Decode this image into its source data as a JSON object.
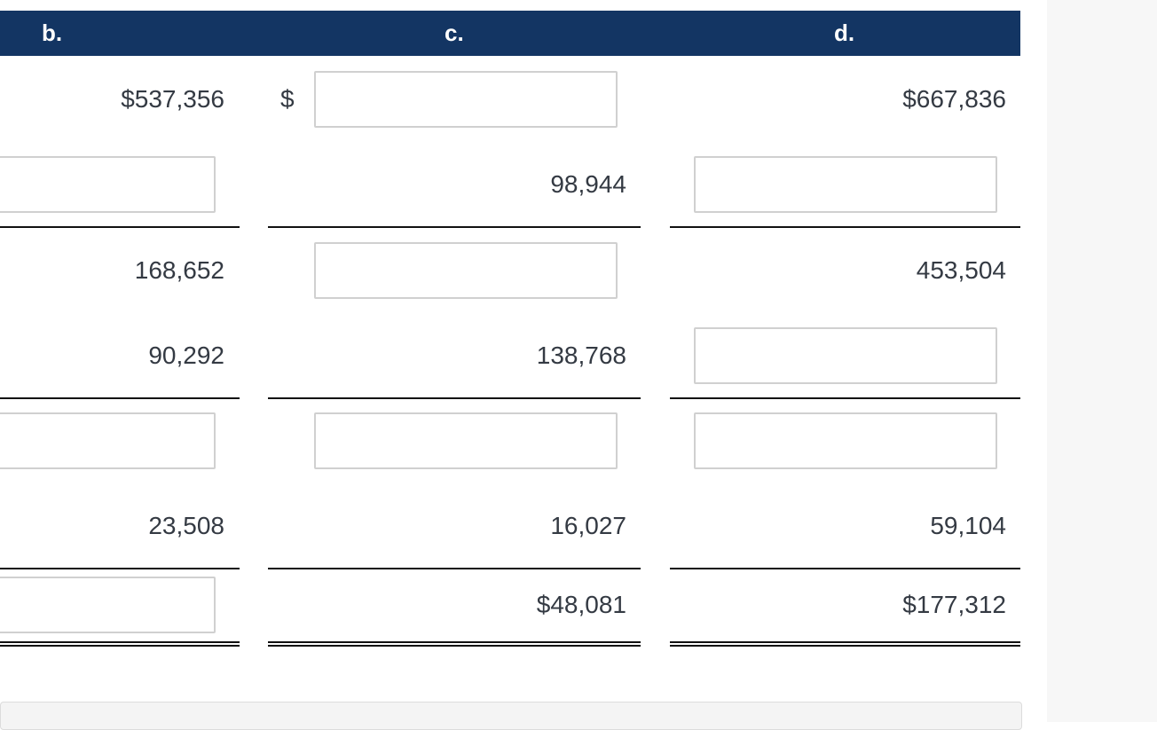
{
  "header": {
    "columns": [
      "b.",
      "c.",
      "d."
    ],
    "color": "#133563"
  },
  "currency_symbol": "$",
  "rows": [
    {
      "cells": [
        {
          "value": "$537,356"
        },
        {
          "input": true,
          "value": "",
          "dollar": true
        },
        {
          "value": "$667,836"
        }
      ]
    },
    {
      "cells": [
        {
          "input": true,
          "value": ""
        },
        {
          "value": "98,944"
        },
        {
          "input": true,
          "value": ""
        }
      ],
      "rule": "single"
    },
    {
      "cells": [
        {
          "value": "168,652"
        },
        {
          "input": true,
          "value": ""
        },
        {
          "value": "453,504"
        }
      ]
    },
    {
      "cells": [
        {
          "value": "90,292"
        },
        {
          "value": "138,768"
        },
        {
          "input": true,
          "value": ""
        }
      ],
      "rule": "single"
    },
    {
      "cells": [
        {
          "input": true,
          "value": ""
        },
        {
          "input": true,
          "value": ""
        },
        {
          "input": true,
          "value": ""
        }
      ]
    },
    {
      "cells": [
        {
          "value": "23,508"
        },
        {
          "value": "16,027"
        },
        {
          "value": "59,104"
        }
      ],
      "rule": "single"
    },
    {
      "cells": [
        {
          "input": true,
          "value": ""
        },
        {
          "value": "$48,081"
        },
        {
          "value": "$177,312"
        }
      ],
      "rule": "double"
    }
  ]
}
